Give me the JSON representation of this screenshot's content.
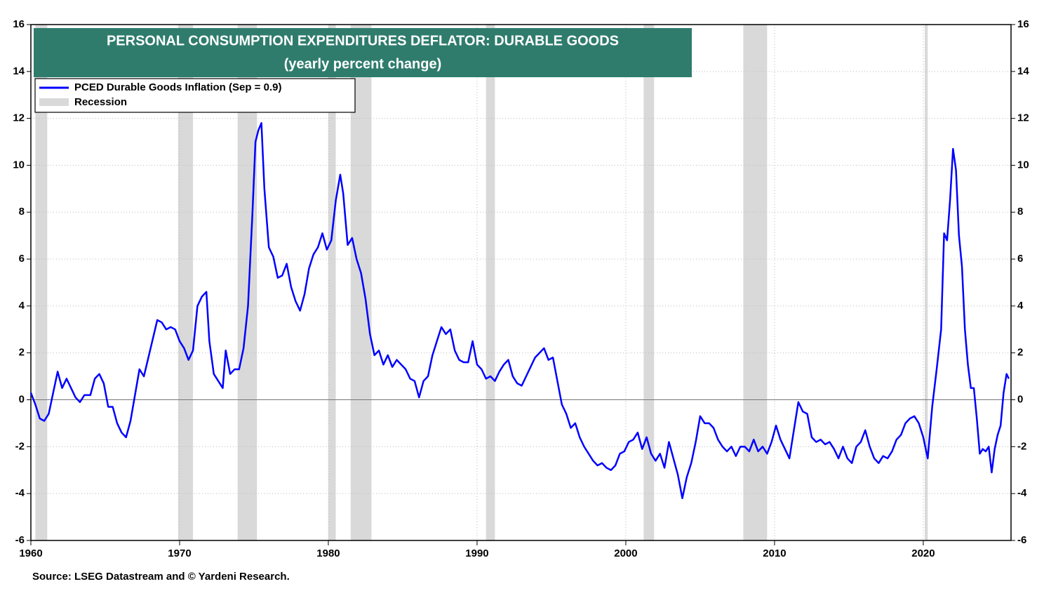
{
  "chart_data": {
    "type": "line",
    "title": "PERSONAL CONSUMPTION EXPENDITURES DEFLATOR: DURABLE GOODS",
    "subtitle": "(yearly percent change)",
    "source": "Source: LSEG Datastream and © Yardeni Research.",
    "x": [
      1960.0,
      1960.3,
      1960.6,
      1960.9,
      1961.2,
      1961.5,
      1961.8,
      1962.1,
      1962.4,
      1962.7,
      1963.0,
      1963.3,
      1963.6,
      1964.0,
      1964.3,
      1964.6,
      1964.9,
      1965.2,
      1965.5,
      1965.8,
      1966.1,
      1966.4,
      1966.7,
      1967.0,
      1967.3,
      1967.6,
      1967.9,
      1968.2,
      1968.5,
      1968.8,
      1969.1,
      1969.4,
      1969.7,
      1970.0,
      1970.3,
      1970.6,
      1970.9,
      1971.2,
      1971.5,
      1971.8,
      1972.0,
      1972.3,
      1972.6,
      1972.9,
      1973.1,
      1973.4,
      1973.7,
      1974.0,
      1974.3,
      1974.6,
      1974.9,
      1975.1,
      1975.3,
      1975.5,
      1975.7,
      1976.0,
      1976.3,
      1976.6,
      1976.9,
      1977.2,
      1977.5,
      1977.8,
      1978.1,
      1978.4,
      1978.7,
      1979.0,
      1979.3,
      1979.6,
      1979.9,
      1980.2,
      1980.5,
      1980.8,
      1981.0,
      1981.3,
      1981.6,
      1981.9,
      1982.2,
      1982.5,
      1982.8,
      1983.1,
      1983.4,
      1983.7,
      1984.0,
      1984.3,
      1984.6,
      1984.9,
      1985.2,
      1985.5,
      1985.8,
      1986.1,
      1986.4,
      1986.7,
      1987.0,
      1987.3,
      1987.6,
      1987.9,
      1988.2,
      1988.5,
      1988.8,
      1989.1,
      1989.4,
      1989.7,
      1990.0,
      1990.3,
      1990.6,
      1990.9,
      1991.2,
      1991.5,
      1991.8,
      1992.1,
      1992.4,
      1992.7,
      1993.0,
      1993.3,
      1993.6,
      1993.9,
      1994.2,
      1994.5,
      1994.8,
      1995.1,
      1995.4,
      1995.7,
      1996.0,
      1996.3,
      1996.6,
      1996.9,
      1997.2,
      1997.5,
      1997.8,
      1998.1,
      1998.4,
      1998.7,
      1999.0,
      1999.3,
      1999.6,
      1999.9,
      2000.2,
      2000.5,
      2000.8,
      2001.1,
      2001.4,
      2001.7,
      2002.0,
      2002.3,
      2002.6,
      2002.9,
      2003.2,
      2003.5,
      2003.8,
      2004.1,
      2004.4,
      2004.7,
      2005.0,
      2005.3,
      2005.6,
      2005.9,
      2006.2,
      2006.5,
      2006.8,
      2007.1,
      2007.4,
      2007.7,
      2008.0,
      2008.3,
      2008.6,
      2008.9,
      2009.2,
      2009.5,
      2009.8,
      2010.1,
      2010.4,
      2010.7,
      2011.0,
      2011.3,
      2011.6,
      2011.9,
      2012.2,
      2012.5,
      2012.8,
      2013.1,
      2013.4,
      2013.7,
      2014.0,
      2014.3,
      2014.6,
      2014.9,
      2015.2,
      2015.5,
      2015.8,
      2016.1,
      2016.4,
      2016.7,
      2017.0,
      2017.3,
      2017.6,
      2017.9,
      2018.2,
      2018.5,
      2018.8,
      2019.1,
      2019.4,
      2019.7,
      2020.0,
      2020.3,
      2020.6,
      2020.9,
      2021.2,
      2021.4,
      2021.6,
      2021.8,
      2022.0,
      2022.2,
      2022.4,
      2022.6,
      2022.8,
      2023.0,
      2023.2,
      2023.4,
      2023.6,
      2023.8,
      2024.0,
      2024.2,
      2024.4,
      2024.6,
      2024.8,
      2025.0,
      2025.2,
      2025.4,
      2025.6,
      2025.75
    ],
    "series": [
      {
        "name": "PCED Durable Goods Inflation (Sep = 0.9)",
        "color": "#0000ff",
        "values": [
          0.3,
          -0.2,
          -0.8,
          -0.9,
          -0.6,
          0.3,
          1.2,
          0.5,
          0.9,
          0.5,
          0.1,
          -0.1,
          0.2,
          0.2,
          0.9,
          1.1,
          0.7,
          -0.3,
          -0.3,
          -1.0,
          -1.4,
          -1.6,
          -0.9,
          0.2,
          1.3,
          1.0,
          1.8,
          2.6,
          3.4,
          3.3,
          3.0,
          3.1,
          3.0,
          2.5,
          2.2,
          1.7,
          2.1,
          4.0,
          4.4,
          4.6,
          2.5,
          1.1,
          0.8,
          0.5,
          2.1,
          1.1,
          1.3,
          1.3,
          2.2,
          4.0,
          8.0,
          11.0,
          11.5,
          11.8,
          9.0,
          6.5,
          6.1,
          5.2,
          5.3,
          5.8,
          4.8,
          4.2,
          3.8,
          4.5,
          5.6,
          6.2,
          6.5,
          7.1,
          6.4,
          6.8,
          8.5,
          9.6,
          8.8,
          6.6,
          6.9,
          6.0,
          5.4,
          4.3,
          2.8,
          1.9,
          2.1,
          1.5,
          1.9,
          1.4,
          1.7,
          1.5,
          1.3,
          0.9,
          0.8,
          0.1,
          0.8,
          1.0,
          1.9,
          2.5,
          3.1,
          2.8,
          3.0,
          2.1,
          1.7,
          1.6,
          1.6,
          2.5,
          1.5,
          1.3,
          0.9,
          1.0,
          0.8,
          1.2,
          1.5,
          1.7,
          1.0,
          0.7,
          0.6,
          1.0,
          1.4,
          1.8,
          2.0,
          2.2,
          1.7,
          1.8,
          0.8,
          -0.2,
          -0.6,
          -1.2,
          -1.0,
          -1.6,
          -2.0,
          -2.3,
          -2.6,
          -2.8,
          -2.7,
          -2.9,
          -3.0,
          -2.8,
          -2.3,
          -2.2,
          -1.8,
          -1.7,
          -1.4,
          -2.1,
          -1.6,
          -2.3,
          -2.6,
          -2.3,
          -2.9,
          -1.8,
          -2.5,
          -3.2,
          -4.2,
          -3.3,
          -2.7,
          -1.8,
          -0.7,
          -1.0,
          -1.0,
          -1.2,
          -1.7,
          -2.0,
          -2.2,
          -2.0,
          -2.4,
          -2.0,
          -2.0,
          -2.2,
          -1.7,
          -2.2,
          -2.0,
          -2.3,
          -1.8,
          -1.1,
          -1.7,
          -2.1,
          -2.5,
          -1.3,
          -0.1,
          -0.5,
          -0.6,
          -1.6,
          -1.8,
          -1.7,
          -1.9,
          -1.8,
          -2.1,
          -2.5,
          -2.0,
          -2.5,
          -2.7,
          -2.0,
          -1.8,
          -1.3,
          -2.0,
          -2.5,
          -2.7,
          -2.4,
          -2.5,
          -2.2,
          -1.7,
          -1.5,
          -1.0,
          -0.8,
          -0.7,
          -1.0,
          -1.6,
          -2.5,
          -0.3,
          1.3,
          3.0,
          7.1,
          6.8,
          8.5,
          10.7,
          9.8,
          7.0,
          5.7,
          3.0,
          1.5,
          0.5,
          0.5,
          -0.8,
          -2.3,
          -2.1,
          -2.2,
          -2.0,
          -3.1,
          -2.1,
          -1.5,
          -1.1,
          0.3,
          1.1,
          0.9
        ]
      }
    ],
    "recessions": {
      "name": "Recession",
      "color": "#d9d9d9",
      "periods": [
        [
          1960.3,
          1961.1
        ],
        [
          1969.9,
          1970.9
        ],
        [
          1973.9,
          1975.2
        ],
        [
          1980.0,
          1980.5
        ],
        [
          1981.5,
          1982.9
        ],
        [
          1990.6,
          1991.2
        ],
        [
          2001.2,
          2001.9
        ],
        [
          2007.9,
          2009.5
        ],
        [
          2020.1,
          2020.3
        ]
      ]
    },
    "xlim": [
      1960,
      2025.9
    ],
    "xticks": [
      1960,
      1970,
      1980,
      1990,
      2000,
      2010,
      2020
    ],
    "ylim": [
      -6,
      16
    ],
    "yticks": [
      -6,
      -4,
      -2,
      0,
      2,
      4,
      6,
      8,
      10,
      12,
      14,
      16
    ],
    "y2lim": [
      -6,
      16
    ],
    "y2ticks": [
      -6,
      -4,
      -2,
      0,
      2,
      4,
      6,
      8,
      10,
      12,
      14,
      16
    ],
    "grid": true
  }
}
